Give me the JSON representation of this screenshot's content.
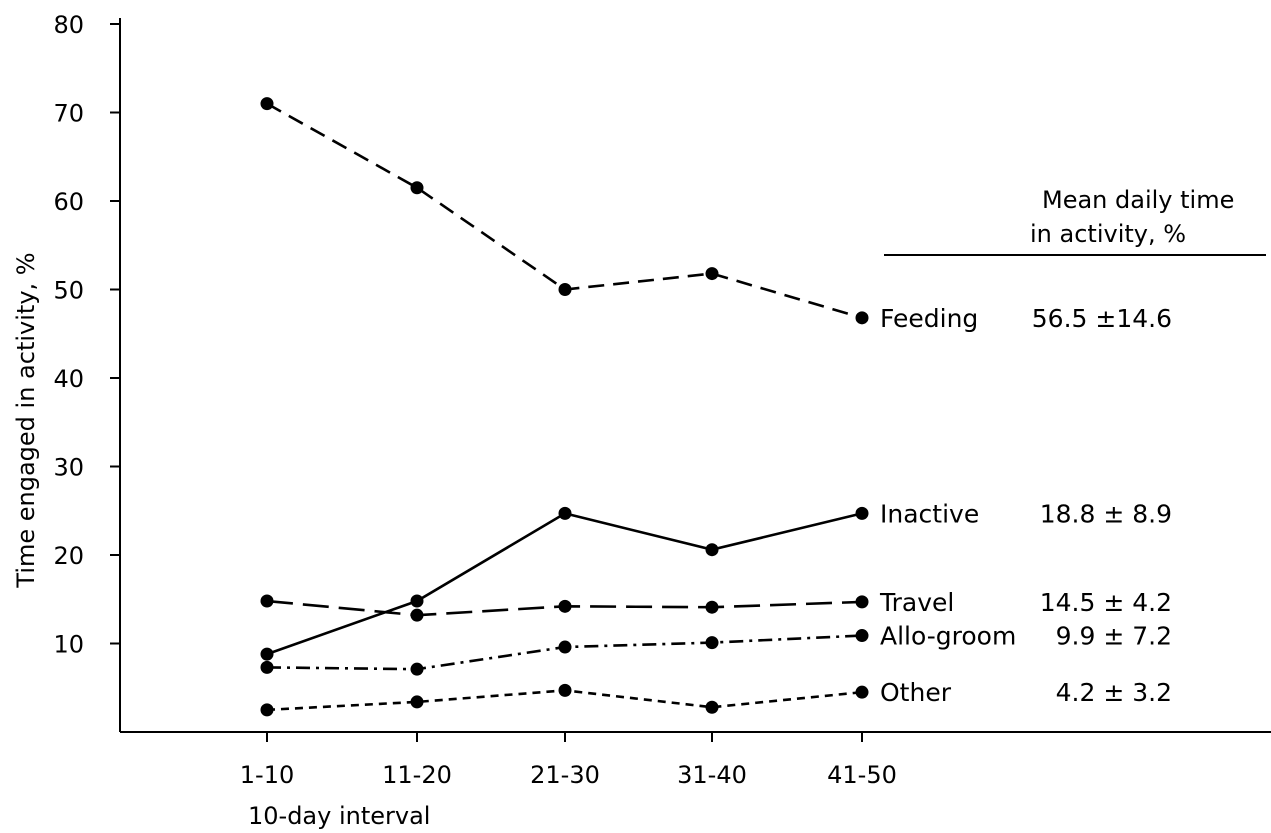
{
  "chart_data": {
    "type": "line",
    "categories": [
      "1-10",
      "11-20",
      "21-30",
      "31-40",
      "41-50"
    ],
    "xlabel": "10-day interval",
    "ylabel": "Time engaged in activity, %",
    "ylim": [
      0,
      80
    ],
    "yticks": [
      10,
      20,
      30,
      40,
      50,
      60,
      70,
      80
    ],
    "grid": false,
    "series": [
      {
        "name": "Feeding",
        "values": [
          71.0,
          61.5,
          50.0,
          51.8,
          46.8
        ],
        "style": "dashed",
        "stat": "56.5 ±14.6"
      },
      {
        "name": "Inactive",
        "values": [
          8.8,
          14.8,
          24.7,
          20.6,
          24.7
        ],
        "style": "solid",
        "stat": "18.8 ± 8.9"
      },
      {
        "name": "Travel",
        "values": [
          14.8,
          13.2,
          14.2,
          14.1,
          14.7
        ],
        "style": "long-dash",
        "stat": "14.5 ± 4.2"
      },
      {
        "name": "Allo-groom",
        "values": [
          7.3,
          7.1,
          9.6,
          10.1,
          10.9
        ],
        "style": "dash-dot",
        "stat": "9.9 ± 7.2"
      },
      {
        "name": "Other",
        "values": [
          2.5,
          3.4,
          4.7,
          2.8,
          4.5
        ],
        "style": "short-dash",
        "stat": "4.2 ± 3.2"
      }
    ],
    "stats_header": [
      "Mean daily time",
      "in activity, %"
    ],
    "line_color": "#000000"
  }
}
